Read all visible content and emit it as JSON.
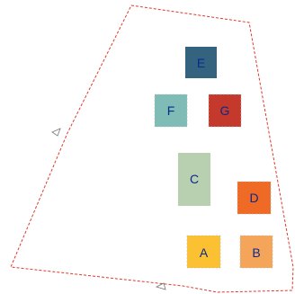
{
  "plot": {
    "boundary_color": "#e0392b",
    "marker_icon": "arrow-marker-icon"
  },
  "blocks": [
    {
      "id": "E",
      "label": "E",
      "fill": "#34637f",
      "text_color": "#0a2a8c"
    },
    {
      "id": "F",
      "label": "F",
      "fill": "#7fbcb5",
      "text_color": "#0a2a8c"
    },
    {
      "id": "G",
      "label": "G",
      "fill": "#c4392b",
      "text_color": "#0a2a8c"
    },
    {
      "id": "C",
      "label": "C",
      "fill": "#b9d0b0",
      "text_color": "#0a2a8c"
    },
    {
      "id": "D",
      "label": "D",
      "fill": "#ee6a25",
      "text_color": "#0a2a8c"
    },
    {
      "id": "A",
      "label": "A",
      "fill": "#fbc133",
      "text_color": "#0a2a8c"
    },
    {
      "id": "B",
      "label": "B",
      "fill": "#f5a55a",
      "text_color": "#0a2a8c"
    }
  ]
}
